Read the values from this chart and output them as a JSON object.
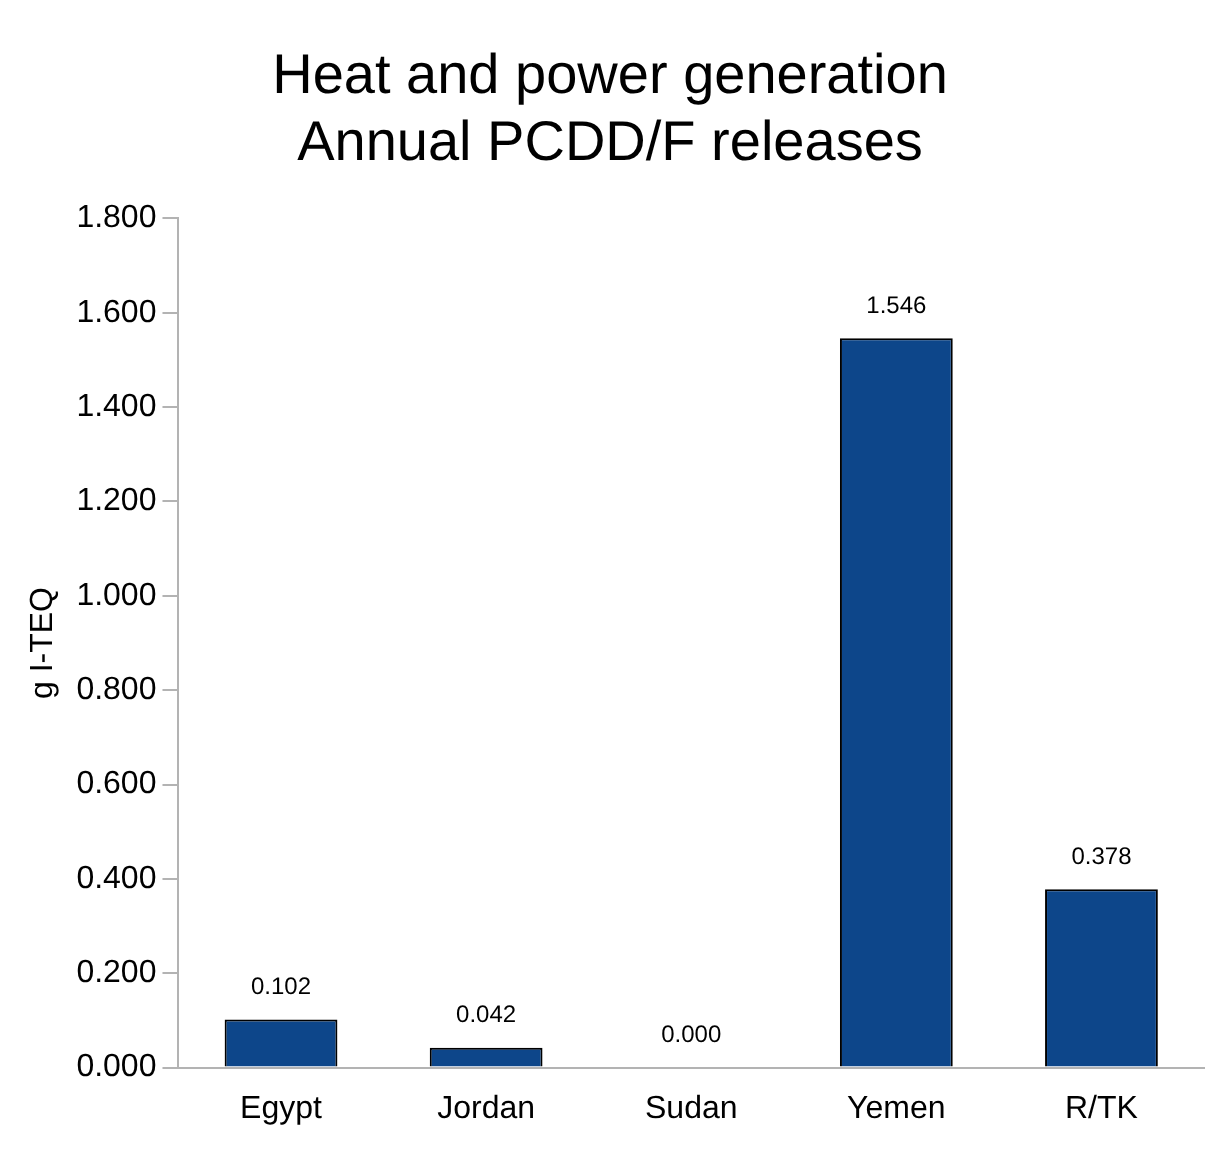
{
  "chart_data": {
    "type": "bar",
    "title": [
      "Heat and power generation",
      "Annual PCDD/F releases"
    ],
    "ylabel": "g I-TEQ",
    "categories": [
      "Egypt",
      "Jordan",
      "Sudan",
      "Yemen",
      "R/TK"
    ],
    "values": [
      0.102,
      0.042,
      0.0,
      1.546,
      0.378
    ],
    "value_labels": [
      "0.102",
      "0.042",
      "0.000",
      "1.546",
      "0.378"
    ],
    "color": "#0d468a",
    "ylim": [
      0,
      1.8
    ],
    "yticks": [
      {
        "value": 0,
        "label": "0.000"
      },
      {
        "value": 0.2,
        "label": "0.200"
      },
      {
        "value": 0.4,
        "label": "0.400"
      },
      {
        "value": 0.6,
        "label": "0.600"
      },
      {
        "value": 0.8,
        "label": "0.800"
      },
      {
        "value": 1.0,
        "label": "1.000"
      },
      {
        "value": 1.2,
        "label": "1.200"
      },
      {
        "value": 1.4,
        "label": "1.400"
      },
      {
        "value": 1.6,
        "label": "1.600"
      },
      {
        "value": 1.8,
        "label": "1.800"
      }
    ],
    "grid": false,
    "legend": false
  }
}
